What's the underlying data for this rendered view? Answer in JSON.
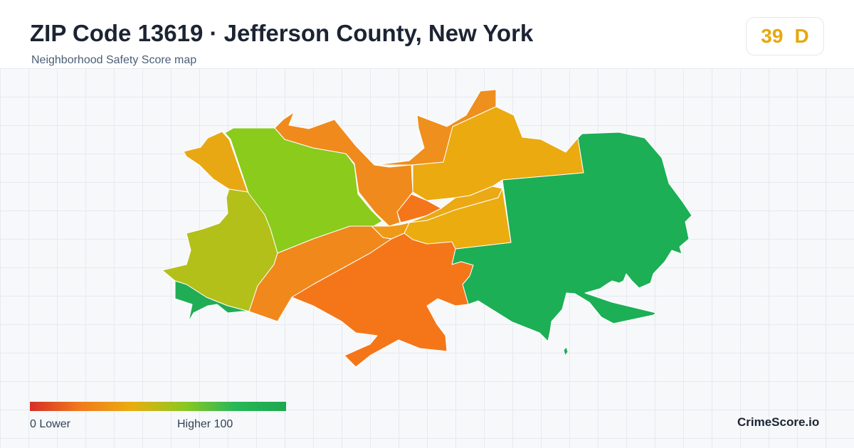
{
  "header": {
    "title": "ZIP Code 13619 · Jefferson County, New York",
    "subtitle": "Neighborhood Safety Score map"
  },
  "score": {
    "value": "39",
    "grade": "D",
    "color": "#e8a70c"
  },
  "legend": {
    "low_label": "0  Lower",
    "high_label": "Higher  100",
    "min": 0,
    "max": 100,
    "gradient": [
      "#d63026",
      "#f07c1b",
      "#e9ad10",
      "#8dc81e",
      "#29b758",
      "#1ba84f"
    ]
  },
  "brand": "CrimeScore.io",
  "colors": {
    "region_west_upper": "#e8a814",
    "region_northwest": "#8acb1c",
    "region_north_central": "#f08a1c",
    "region_northeast_strip": "#ef8f1d",
    "region_northeast": "#eaaa10",
    "region_east": "#1caf55",
    "region_center_small": "#f4761a",
    "region_center_east_a": "#eaa915",
    "region_center_east_b": "#ebac0f",
    "region_west_lower": "#b3c01a",
    "region_southwest": "#21ad55",
    "region_south_central": "#f0881b",
    "region_south": "#f47619",
    "region_center_sliver": "#ef9a17"
  }
}
